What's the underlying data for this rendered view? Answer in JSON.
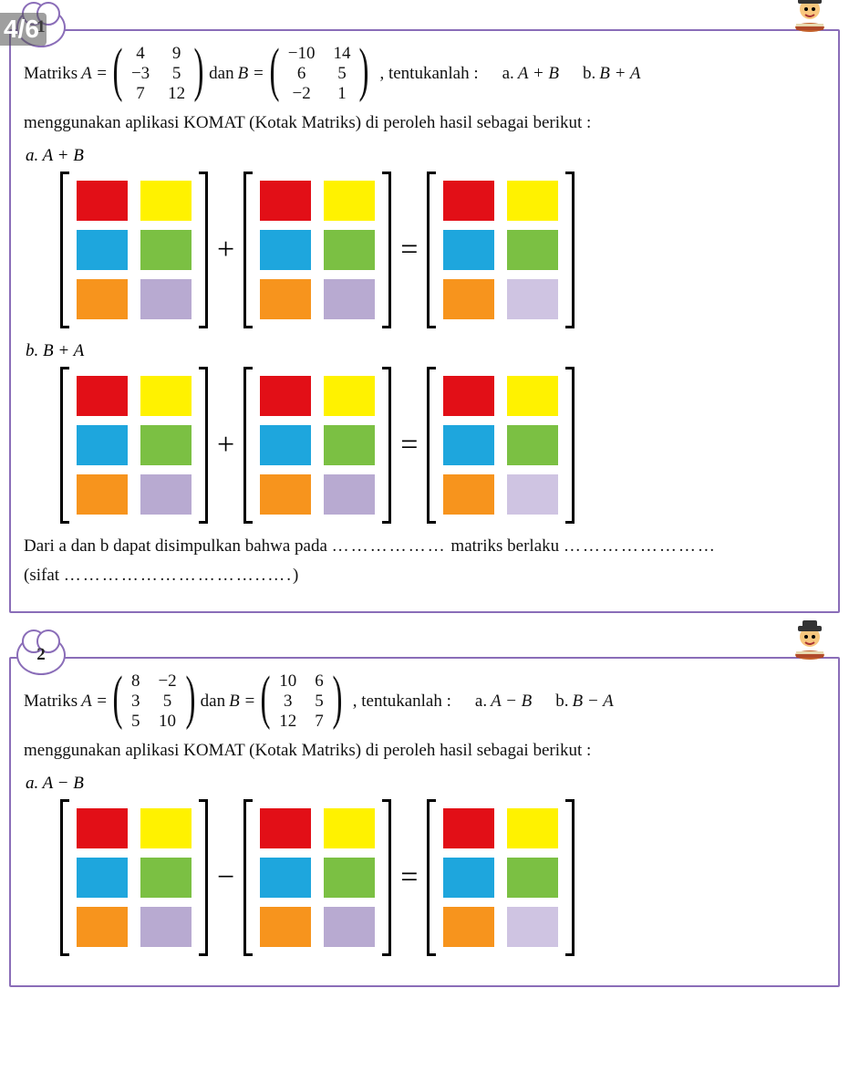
{
  "page_counter": "4/6",
  "colors": {
    "border": "#8a6db8",
    "text": "#111111",
    "red": "#e20f17",
    "yellow": "#fff200",
    "cyan": "#1ea6dd",
    "green": "#7bc043",
    "orange": "#f7941d",
    "lavender": "#b8aad1",
    "lav_light": "#cfc4e2"
  },
  "q1": {
    "number": "1",
    "lead": "Matriks",
    "A_label": "A =",
    "A": [
      [
        "4",
        "9"
      ],
      [
        "−3",
        "5"
      ],
      [
        "7",
        "12"
      ]
    ],
    "dan": "dan",
    "B_label": "B =",
    "B": [
      [
        "−10",
        "14"
      ],
      [
        "6",
        "5"
      ],
      [
        "−2",
        "1"
      ]
    ],
    "tentukan": ", tentukanlah :",
    "opt_a_label": "a.",
    "opt_a_expr": "A + B",
    "opt_b_label": "b.",
    "opt_b_expr": "B + A",
    "komat": "menggunakan aplikasi KOMAT (Kotak Matriks) di peroleh hasil sebagai berikut :",
    "sec_a": "a.   A + B",
    "sec_b": "b.   B + A",
    "op_plus": "+",
    "op_eq": "=",
    "conc1a": "Dari a dan b dapat disimpulkan bahwa pada ",
    "conc1b": " matriks berlaku ",
    "dots1": "………………",
    "dots2": "……………………",
    "sifat_a": "(sifat ",
    "sifat_dots": "…………………………..….",
    "sifat_b": ")"
  },
  "q2": {
    "number": "2",
    "lead": "Matriks",
    "A_label": "A =",
    "A": [
      [
        "8",
        "−2"
      ],
      [
        "3",
        "5"
      ],
      [
        "5",
        "10"
      ]
    ],
    "dan": "dan",
    "B_label": "B =",
    "B": [
      [
        "10",
        "6"
      ],
      [
        "3",
        "5"
      ],
      [
        "12",
        "7"
      ]
    ],
    "tentukan": ", tentukanlah :",
    "opt_a_label": "a.",
    "opt_a_expr": "A − B",
    "opt_b_label": "b.",
    "opt_b_expr": "B − A",
    "komat": "menggunakan aplikasi KOMAT (Kotak Matriks) di peroleh hasil sebagai berikut :",
    "sec_a": "a.   A − B",
    "op_minus": "−",
    "op_eq": "="
  },
  "matrix_palette": [
    [
      "red",
      "yellow"
    ],
    [
      "cyan",
      "green"
    ],
    [
      "orange",
      "lavender"
    ]
  ],
  "matrix_palette_result_last": [
    [
      "red",
      "yellow"
    ],
    [
      "cyan",
      "green"
    ],
    [
      "orange",
      "lav_light"
    ]
  ]
}
